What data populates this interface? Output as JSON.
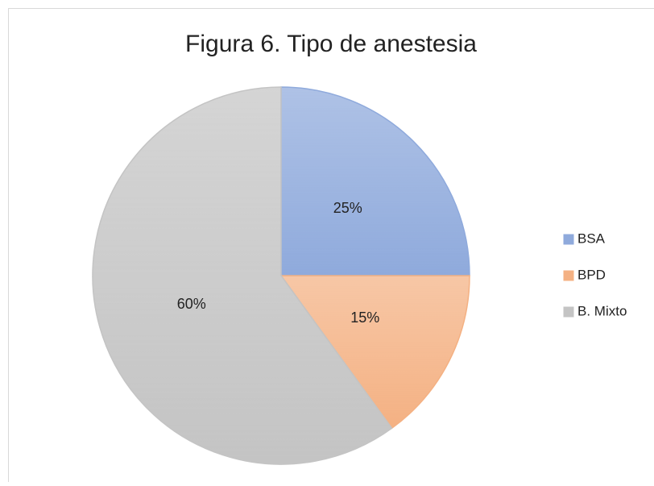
{
  "chart_data": {
    "type": "pie",
    "title": "Figura 6. Tipo de anestesia",
    "categories": [
      "BSA",
      "BPD",
      "B. Mixto"
    ],
    "values": [
      25,
      15,
      60
    ],
    "value_labels": [
      "25%",
      "15%",
      "60%"
    ],
    "colors": [
      "#8faadc",
      "#f4b183",
      "#c4c4c4"
    ],
    "legend": "right"
  }
}
